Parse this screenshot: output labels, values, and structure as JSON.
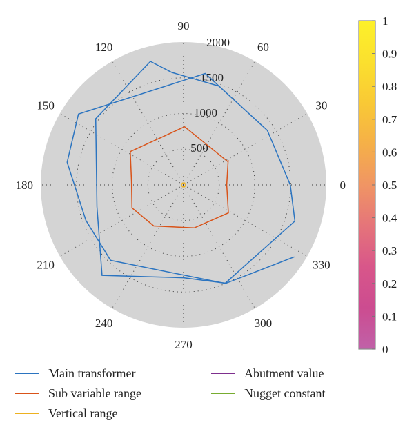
{
  "chart_data": {
    "type": "polar-line",
    "angle_unit": "degrees",
    "angle_ticks": [
      0,
      30,
      60,
      90,
      120,
      150,
      180,
      210,
      240,
      270,
      300,
      330
    ],
    "radial_ticks": [
      500,
      1000,
      1500,
      2000
    ],
    "rlim": [
      0,
      2000
    ],
    "radial_tick_angle_deg": 80,
    "grid": true,
    "legend_position": "bottom",
    "series": [
      {
        "name": "Main transformer",
        "color": "#2b74c0",
        "points": [
          {
            "theta": 70,
            "r": 1470
          },
          {
            "theta": 96,
            "r": 1585
          },
          {
            "theta": 105,
            "r": 1790
          },
          {
            "theta": 143,
            "r": 1540
          },
          {
            "theta": 194,
            "r": 1250
          },
          {
            "theta": 228,
            "r": 1705
          },
          {
            "theta": 270,
            "r": 1300
          },
          {
            "theta": 293,
            "r": 1495
          },
          {
            "theta": 342,
            "r": 1640
          },
          {
            "theta": 360,
            "r": 1495
          },
          {
            "theta": 33,
            "r": 1400
          },
          {
            "theta": 79,
            "r": 1590
          },
          {
            "theta": 146,
            "r": 1775
          },
          {
            "theta": 169,
            "r": 1660
          },
          {
            "theta": 200,
            "r": 1455
          },
          {
            "theta": 226,
            "r": 1470
          },
          {
            "theta": 293,
            "r": 1500
          },
          {
            "theta": 327,
            "r": 1850
          }
        ]
      },
      {
        "name": "Sub variable range",
        "color": "#d95319",
        "points": [
          {
            "theta": 27,
            "r": 705
          },
          {
            "theta": 89,
            "r": 815
          },
          {
            "theta": 148,
            "r": 880
          },
          {
            "theta": 176,
            "r": 730
          },
          {
            "theta": 204,
            "r": 790
          },
          {
            "theta": 234,
            "r": 710
          },
          {
            "theta": 284,
            "r": 620
          },
          {
            "theta": 328,
            "r": 740
          },
          {
            "theta": 360,
            "r": 605
          },
          {
            "theta": 29,
            "r": 715
          }
        ]
      },
      {
        "name": "Vertical range",
        "color": "#edb120",
        "points": [
          {
            "theta": 0,
            "r": 30
          },
          {
            "theta": 60,
            "r": 30
          },
          {
            "theta": 120,
            "r": 30
          },
          {
            "theta": 180,
            "r": 30
          },
          {
            "theta": 240,
            "r": 30
          },
          {
            "theta": 300,
            "r": 30
          },
          {
            "theta": 360,
            "r": 30
          }
        ]
      },
      {
        "name": "Abutment value",
        "color": "#7e2f8e",
        "points": []
      },
      {
        "name": "Nugget constant",
        "color": "#77ac30",
        "points": []
      }
    ],
    "colorbar": {
      "ticks": [
        "0",
        "0.1",
        "0.2",
        "0.3",
        "0.4",
        "0.5",
        "0.6",
        "0.7",
        "0.8",
        "0.9",
        "1"
      ],
      "range": [
        0,
        1
      ],
      "colormap": "spring",
      "colors": [
        "#c061a8",
        "#cc4c90",
        "#d8568a",
        "#e5747a",
        "#f09564",
        "#f5b048",
        "#f9c935",
        "#fbe02e",
        "#fdf12a"
      ]
    },
    "plot_background": "#d4d4d4"
  },
  "legend": {
    "items": [
      {
        "label": "Main transformer",
        "color": "#2b74c0"
      },
      {
        "label": "Sub variable range",
        "color": "#d95319"
      },
      {
        "label": "Vertical range",
        "color": "#edb120"
      },
      {
        "label": "Abutment value",
        "color": "#7e2f8e"
      },
      {
        "label": "Nugget constant",
        "color": "#77ac30"
      }
    ]
  }
}
